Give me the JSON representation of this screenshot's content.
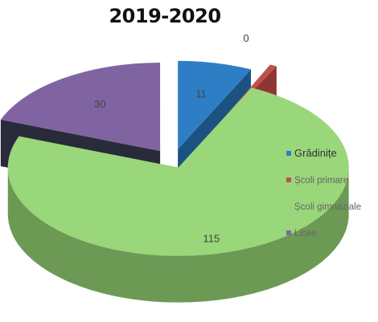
{
  "chart_data": {
    "type": "pie",
    "title": "2019-2020",
    "three_d": true,
    "exploded": true,
    "legend_position": "right",
    "series": [
      {
        "label": "Grădinițe",
        "value": 11,
        "color": "#2e7ec5",
        "side_color": "#1f5b90"
      },
      {
        "label": "Școli primare",
        "value": 0,
        "color": "#c0504d",
        "side_color": "#8e3633"
      },
      {
        "label": "Școli gimnaziale",
        "value": 115,
        "color": "#9ad67a",
        "side_color": "#6c9a55"
      },
      {
        "label": "Licee",
        "value": 30,
        "color": "#8064a2",
        "side_color": "#2e3040"
      }
    ]
  }
}
